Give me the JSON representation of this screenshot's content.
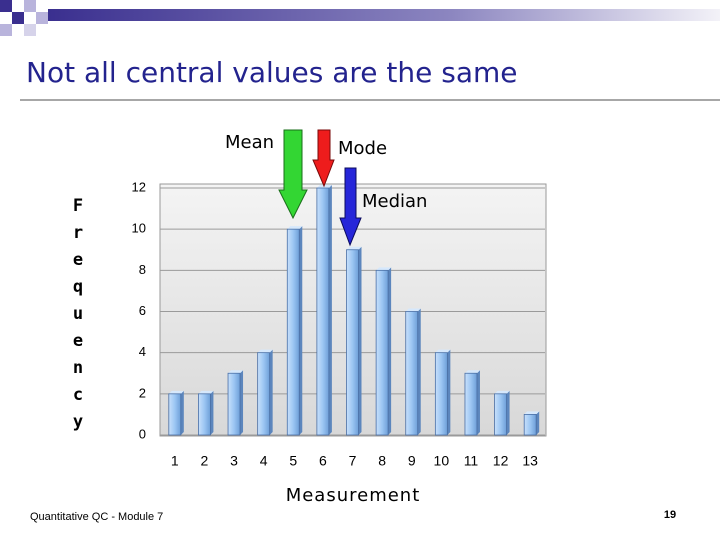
{
  "chart_data": {
    "type": "bar",
    "title": "Not all central values are the same",
    "categories": [
      "1",
      "2",
      "3",
      "4",
      "5",
      "6",
      "7",
      "8",
      "9",
      "10",
      "11",
      "12",
      "13"
    ],
    "values": [
      2,
      2,
      3,
      4,
      10,
      12,
      9,
      8,
      6,
      4,
      3,
      2,
      1
    ],
    "color": "#8fbff2",
    "ylim": [
      0,
      12
    ],
    "yticks": [
      0,
      2,
      4,
      6,
      8,
      10,
      12
    ],
    "grid": true,
    "y_label": "Frequency",
    "x_label": "Measurement",
    "annotations": {
      "mean": "Mean",
      "mode": "Mode",
      "median": "Median"
    }
  },
  "footer": "Quantitative QC - Module 7",
  "page_number": "19"
}
